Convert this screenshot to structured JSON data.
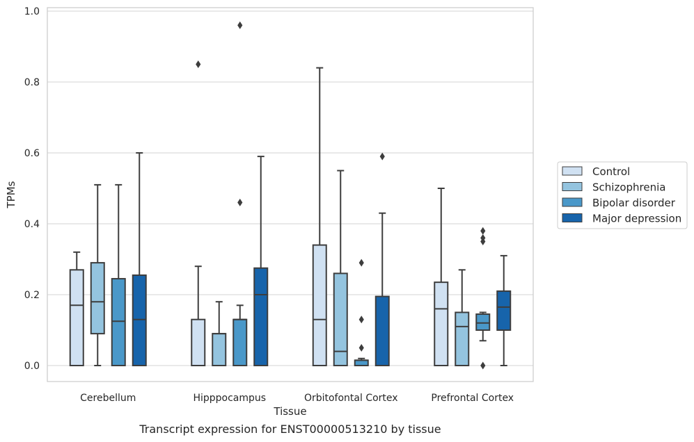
{
  "chart_data": {
    "type": "box",
    "title": "",
    "caption": "Transcript expression for ENST00000513210 by tissue",
    "xlabel": "Tissue",
    "ylabel": "TPMs",
    "ylim": [
      -0.045,
      1.01
    ],
    "yticks": [
      0.0,
      0.2,
      0.4,
      0.6,
      0.8,
      1.0
    ],
    "ytick_labels": [
      "0.0",
      "0.2",
      "0.4",
      "0.6",
      "0.8",
      "1.0"
    ],
    "grid": "horizontal",
    "legend_position": "right",
    "categories": [
      "Cerebellum",
      "Hipppocampus",
      "Orbitofontal Cortex",
      "Prefrontal Cortex"
    ],
    "series": [
      {
        "name": "Control",
        "color": "#d0e1f2",
        "boxes": [
          {
            "whisker_low": 0.0,
            "q1": 0.0,
            "median": 0.17,
            "q3": 0.27,
            "whisker_high": 0.32,
            "outliers": []
          },
          {
            "whisker_low": 0.0,
            "q1": 0.0,
            "median": 0.0,
            "q3": 0.13,
            "whisker_high": 0.28,
            "outliers": [
              0.85
            ]
          },
          {
            "whisker_low": 0.0,
            "q1": 0.0,
            "median": 0.13,
            "q3": 0.34,
            "whisker_high": 0.84,
            "outliers": []
          },
          {
            "whisker_low": 0.0,
            "q1": 0.0,
            "median": 0.16,
            "q3": 0.235,
            "whisker_high": 0.5,
            "outliers": []
          }
        ]
      },
      {
        "name": "Schizophrenia",
        "color": "#94c4df",
        "boxes": [
          {
            "whisker_low": 0.0,
            "q1": 0.09,
            "median": 0.18,
            "q3": 0.29,
            "whisker_high": 0.51,
            "outliers": []
          },
          {
            "whisker_low": 0.0,
            "q1": 0.0,
            "median": 0.09,
            "q3": 0.09,
            "whisker_high": 0.18,
            "outliers": []
          },
          {
            "whisker_low": 0.0,
            "q1": 0.0,
            "median": 0.04,
            "q3": 0.26,
            "whisker_high": 0.55,
            "outliers": []
          },
          {
            "whisker_low": 0.0,
            "q1": 0.0,
            "median": 0.11,
            "q3": 0.15,
            "whisker_high": 0.27,
            "outliers": []
          }
        ]
      },
      {
        "name": "Bipolar disorder",
        "color": "#4a98c9",
        "boxes": [
          {
            "whisker_low": 0.0,
            "q1": 0.0,
            "median": 0.125,
            "q3": 0.245,
            "whisker_high": 0.51,
            "outliers": []
          },
          {
            "whisker_low": 0.0,
            "q1": 0.0,
            "median": 0.13,
            "q3": 0.13,
            "whisker_high": 0.17,
            "outliers": [
              0.46,
              0.96
            ]
          },
          {
            "whisker_low": 0.0,
            "q1": 0.0,
            "median": 0.015,
            "q3": 0.015,
            "whisker_high": 0.02,
            "outliers": [
              0.05,
              0.13,
              0.29
            ]
          },
          {
            "whisker_low": 0.07,
            "q1": 0.1,
            "median": 0.12,
            "q3": 0.145,
            "whisker_high": 0.15,
            "outliers": [
              0.0,
              0.35,
              0.36,
              0.38
            ]
          }
        ]
      },
      {
        "name": "Major depression",
        "color": "#1764ab",
        "boxes": [
          {
            "whisker_low": 0.0,
            "q1": 0.0,
            "median": 0.13,
            "q3": 0.255,
            "whisker_high": 0.6,
            "outliers": []
          },
          {
            "whisker_low": 0.0,
            "q1": 0.0,
            "median": 0.2,
            "q3": 0.275,
            "whisker_high": 0.59,
            "outliers": []
          },
          {
            "whisker_low": 0.0,
            "q1": 0.0,
            "median": 0.0,
            "q3": 0.195,
            "whisker_high": 0.43,
            "outliers": [
              0.59
            ]
          },
          {
            "whisker_low": 0.0,
            "q1": 0.1,
            "median": 0.165,
            "q3": 0.21,
            "whisker_high": 0.31,
            "outliers": []
          }
        ]
      }
    ]
  }
}
